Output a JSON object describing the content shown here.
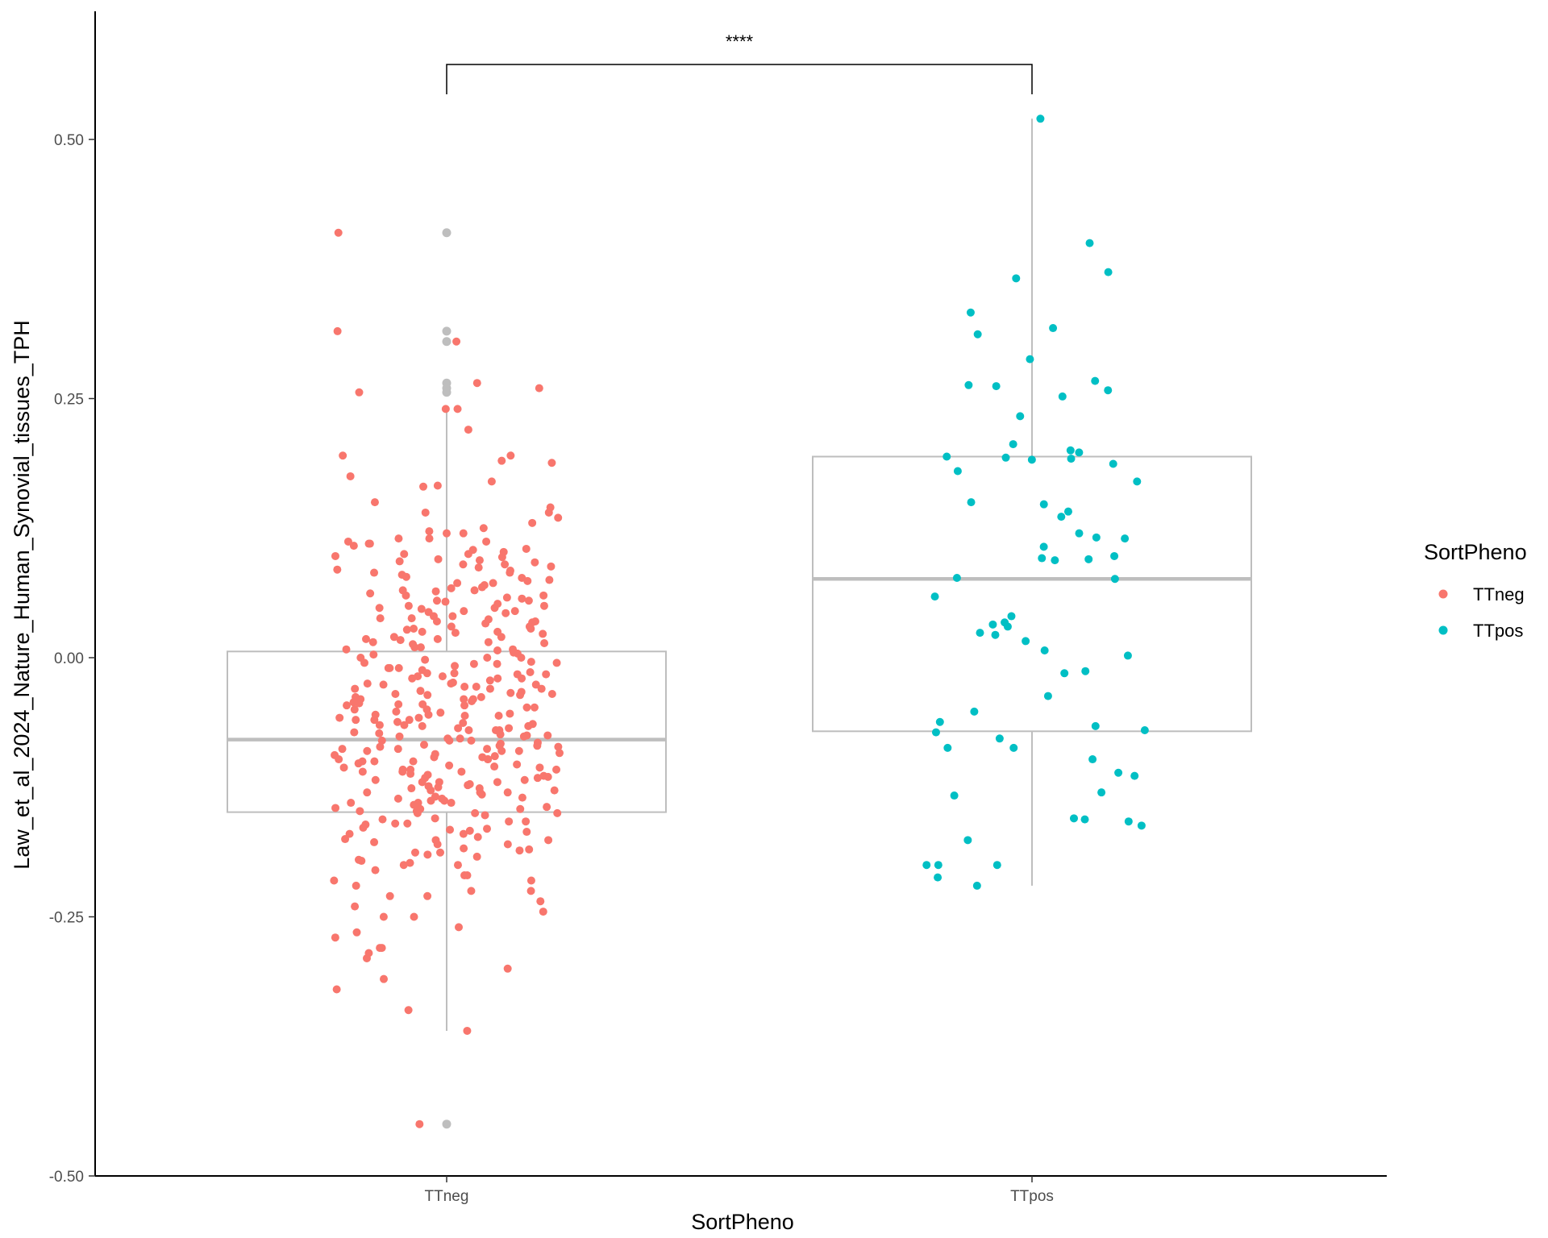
{
  "chart_data": {
    "type": "box",
    "title": "",
    "xlabel": "SortPheno",
    "ylabel": "Law_et_al_2024_Nature_Human_Synovial_tissues_TPH",
    "ylim": [
      -0.5,
      0.6
    ],
    "yticks": [
      -0.5,
      -0.25,
      0.0,
      0.25,
      0.5
    ],
    "ytick_labels": [
      "-0.50",
      "-0.25",
      "0.00",
      "0.25",
      "0.50"
    ],
    "categories": [
      "TTneg",
      "TTpos"
    ],
    "grid": false,
    "legend": {
      "title": "SortPheno",
      "position": "right",
      "entries": [
        {
          "label": "TTneg",
          "color": "#F8766D"
        },
        {
          "label": "TTpos",
          "color": "#00BFC4"
        }
      ]
    },
    "significance": {
      "groups": [
        "TTneg",
        "TTpos"
      ],
      "label": "****"
    },
    "boxes": [
      {
        "category": "TTneg",
        "whisker_low": -0.36,
        "q1": -0.149,
        "median": -0.079,
        "q3": 0.006,
        "whisker_high": 0.24,
        "outliers": [
          0.41,
          0.315,
          0.305,
          0.265,
          0.26,
          0.256,
          -0.45
        ]
      },
      {
        "category": "TTpos",
        "whisker_low": -0.22,
        "q1": -0.071,
        "median": 0.076,
        "q3": 0.194,
        "whisker_high": 0.52,
        "outliers": []
      }
    ],
    "series": [
      {
        "name": "TTneg",
        "color": "#F8766D",
        "jitter_seed": 12345,
        "values": [
          0.41,
          0.315,
          0.305,
          0.265,
          0.26,
          0.256,
          0.24,
          0.24,
          0.22,
          0.195,
          0.195,
          0.19,
          0.188,
          0.175,
          0.17,
          0.166,
          0.165,
          0.145,
          0.14,
          0.14,
          0.135,
          0.125,
          0.122,
          0.12,
          0.115,
          0.115,
          0.112,
          0.11,
          0.108,
          0.105,
          0.1,
          0.098,
          0.095,
          0.093,
          0.09,
          0.088,
          0.085,
          0.082,
          0.08,
          0.078,
          0.075,
          0.072,
          0.07,
          0.068,
          0.065,
          0.062,
          0.06,
          0.058,
          0.055,
          0.052,
          0.05,
          0.048,
          0.045,
          0.043,
          0.04,
          0.038,
          0.035,
          0.033,
          0.03,
          0.028,
          0.025,
          0.023,
          0.02,
          0.018,
          0.015,
          0.013,
          0.01,
          0.008,
          0.005,
          0.003,
          0.0,
          -0.002,
          -0.004,
          -0.006,
          -0.008,
          -0.01,
          -0.012,
          -0.014,
          -0.016,
          -0.018,
          -0.02,
          -0.022,
          -0.024,
          -0.026,
          -0.028,
          -0.03,
          -0.032,
          -0.034,
          -0.036,
          -0.038,
          -0.04,
          -0.042,
          -0.044,
          -0.046,
          -0.048,
          -0.05,
          -0.052,
          -0.054,
          -0.056,
          -0.058,
          -0.06,
          -0.062,
          -0.064,
          -0.066,
          -0.068,
          -0.07,
          -0.072,
          -0.074,
          -0.076,
          -0.078,
          -0.08,
          -0.082,
          -0.084,
          -0.086,
          -0.088,
          -0.09,
          -0.092,
          -0.094,
          -0.096,
          -0.098,
          -0.1,
          -0.102,
          -0.104,
          -0.106,
          -0.108,
          -0.11,
          -0.112,
          -0.114,
          -0.116,
          -0.118,
          -0.12,
          -0.122,
          -0.124,
          -0.126,
          -0.128,
          -0.13,
          -0.132,
          -0.134,
          -0.136,
          -0.138,
          -0.14,
          -0.142,
          -0.144,
          -0.146,
          -0.148,
          -0.15,
          -0.152,
          -0.155,
          -0.158,
          -0.161,
          -0.164,
          -0.167,
          -0.17,
          -0.173,
          -0.176,
          -0.18,
          -0.184,
          -0.188,
          -0.192,
          -0.196,
          -0.2,
          -0.205,
          -0.21,
          -0.215,
          -0.22,
          -0.225,
          -0.23,
          -0.235,
          -0.24,
          -0.25,
          -0.26,
          -0.27,
          -0.28,
          -0.29,
          -0.3,
          -0.31,
          -0.32,
          -0.34,
          -0.36,
          -0.45,
          0.0,
          -0.02,
          -0.04,
          -0.06,
          -0.08,
          -0.1,
          -0.12,
          -0.14,
          -0.16,
          -0.18,
          0.02,
          0.04,
          0.06,
          -0.05,
          -0.07,
          -0.09,
          -0.11,
          -0.13,
          -0.15,
          -0.03,
          -0.01,
          0.01,
          0.03,
          0.05,
          -0.19,
          -0.21,
          -0.23,
          -0.25,
          -0.28,
          -0.095,
          -0.085,
          -0.075,
          -0.065,
          -0.055,
          -0.045,
          -0.035,
          -0.025,
          -0.015,
          -0.005,
          0.007,
          0.017,
          0.027,
          0.037,
          0.047,
          0.057,
          0.067,
          0.077,
          0.087,
          0.097,
          -0.105,
          -0.115,
          -0.125,
          -0.135,
          -0.145,
          -0.165,
          -0.175,
          -0.185,
          -0.195,
          -0.2,
          0.12,
          0.13,
          0.15,
          0.1,
          0.09,
          -0.085,
          -0.09,
          -0.1,
          -0.11,
          -0.12,
          -0.06,
          -0.07,
          -0.08,
          -0.03,
          -0.04,
          -0.01,
          -0.02,
          0.0,
          0.015,
          0.025,
          -0.13,
          -0.14,
          -0.15,
          -0.16,
          -0.17,
          -0.055,
          -0.065,
          -0.075,
          -0.045,
          -0.035,
          0.035,
          0.045,
          0.055,
          0.065,
          0.11,
          -0.215,
          -0.225,
          -0.245,
          -0.265,
          -0.285,
          -0.005,
          -0.015,
          -0.025,
          -0.088,
          -0.098,
          -0.108,
          -0.118,
          -0.128,
          -0.138,
          -0.148,
          0.008,
          0.018,
          0.028,
          0.038,
          0.048,
          -0.158,
          -0.168,
          -0.178,
          -0.188,
          -0.198,
          0.072,
          0.082,
          0.092,
          0.102,
          0.112,
          -0.033,
          -0.043,
          -0.053,
          -0.063,
          -0.073,
          -0.083,
          -0.093,
          -0.103,
          -0.113,
          -0.123,
          0.004,
          -0.006,
          -0.016,
          -0.026,
          -0.036,
          -0.046,
          -0.056,
          -0.066,
          -0.076,
          -0.086,
          -0.096,
          -0.106,
          -0.116,
          -0.126,
          -0.136,
          -0.146,
          -0.156,
          -0.166,
          -0.176,
          -0.186,
          0.014,
          0.024,
          0.034,
          0.044,
          0.054,
          0.064,
          0.074,
          0.084,
          0.094,
          0.104,
          -0.018,
          -0.028,
          -0.038,
          -0.048,
          -0.058,
          -0.068,
          -0.078,
          -0.088,
          -0.098,
          -0.108
        ]
      },
      {
        "name": "TTpos",
        "color": "#00BFC4",
        "jitter_seed": 777,
        "values": [
          0.52,
          0.4,
          0.372,
          0.366,
          0.333,
          0.318,
          0.312,
          0.288,
          0.267,
          0.263,
          0.262,
          0.258,
          0.252,
          0.233,
          0.206,
          0.2,
          0.198,
          0.194,
          0.193,
          0.192,
          0.191,
          0.187,
          0.18,
          0.17,
          0.15,
          0.148,
          0.141,
          0.136,
          0.12,
          0.116,
          0.115,
          0.107,
          0.098,
          0.096,
          0.095,
          0.094,
          0.077,
          0.076,
          0.059,
          0.04,
          0.034,
          0.032,
          0.03,
          0.024,
          0.022,
          0.016,
          0.007,
          0.002,
          -0.013,
          -0.015,
          -0.037,
          -0.052,
          -0.062,
          -0.066,
          -0.07,
          -0.072,
          -0.078,
          -0.087,
          -0.087,
          -0.098,
          -0.111,
          -0.114,
          -0.13,
          -0.133,
          -0.155,
          -0.156,
          -0.158,
          -0.162,
          -0.176,
          -0.2,
          -0.2,
          -0.2,
          -0.212,
          -0.22
        ]
      }
    ]
  }
}
